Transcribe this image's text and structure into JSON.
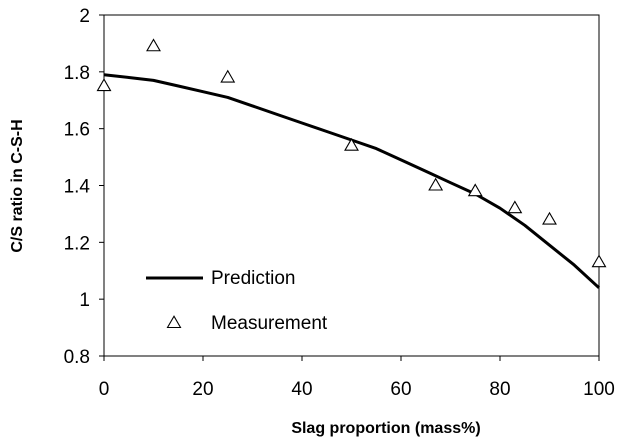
{
  "chart_data": {
    "type": "line",
    "title": "",
    "xlabel": "Slag proportion (mass%)",
    "ylabel": "C/S ratio in C-S-H",
    "xlim": [
      0,
      100
    ],
    "ylim": [
      0.8,
      2.0
    ],
    "x_ticks": [
      "0",
      "20",
      "40",
      "60",
      "80",
      "100"
    ],
    "y_ticks": [
      "0.8",
      "1",
      "1.2",
      "1.4",
      "1.6",
      "1.8",
      "2"
    ],
    "grid": false,
    "legend_position": "bottom-left",
    "series": [
      {
        "name": "Prediction",
        "style": "line",
        "color": "#000000",
        "x": [
          0,
          5,
          10,
          15,
          20,
          25,
          30,
          35,
          40,
          45,
          50,
          55,
          60,
          65,
          70,
          75,
          80,
          85,
          90,
          95,
          100
        ],
        "y": [
          1.79,
          1.78,
          1.77,
          1.75,
          1.73,
          1.71,
          1.68,
          1.65,
          1.62,
          1.59,
          1.56,
          1.53,
          1.49,
          1.45,
          1.41,
          1.37,
          1.32,
          1.26,
          1.19,
          1.12,
          1.04
        ]
      },
      {
        "name": "Measurement",
        "style": "marker",
        "marker": "triangle-open",
        "color": "#000000",
        "x": [
          0,
          10,
          25,
          50,
          67,
          75,
          83,
          90,
          100
        ],
        "y": [
          1.75,
          1.89,
          1.78,
          1.54,
          1.4,
          1.38,
          1.32,
          1.28,
          1.13
        ]
      }
    ]
  }
}
